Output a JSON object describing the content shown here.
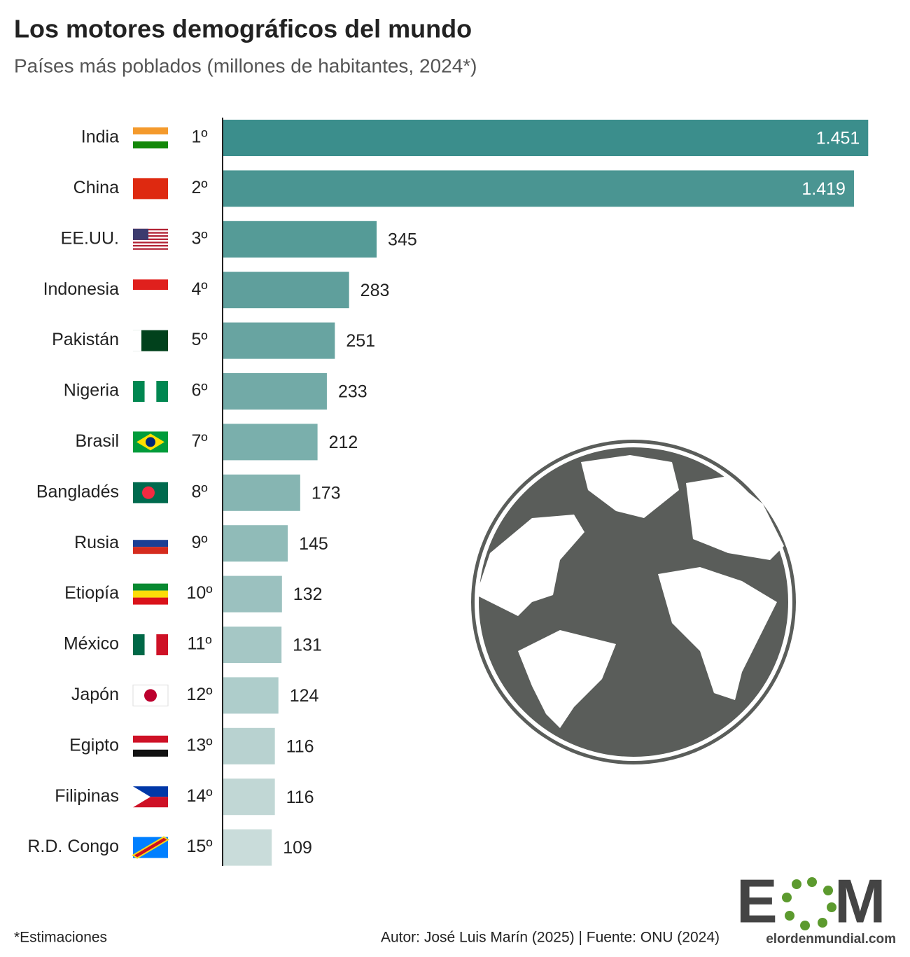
{
  "chart_data": {
    "type": "bar",
    "orientation": "horizontal",
    "title": "Los motores demográficos del mundo",
    "subtitle": "Países más poblados (millones de habitantes, 2024*)",
    "categories": [
      "India",
      "China",
      "EE.UU.",
      "Indonesia",
      "Pakistán",
      "Nigeria",
      "Brasil",
      "Bangladés",
      "Rusia",
      "Etiopía",
      "México",
      "Japón",
      "Egipto",
      "Filipinas",
      "R.D. Congo"
    ],
    "ranks": [
      "1º",
      "2º",
      "3º",
      "4º",
      "5º",
      "6º",
      "7º",
      "8º",
      "9º",
      "10º",
      "11º",
      "12º",
      "13º",
      "14º",
      "15º"
    ],
    "values": [
      1451,
      1419,
      345,
      283,
      251,
      233,
      212,
      173,
      145,
      132,
      131,
      124,
      116,
      116,
      109
    ],
    "value_labels": [
      "1.451",
      "1.419",
      "345",
      "283",
      "251",
      "233",
      "212",
      "173",
      "145",
      "132",
      "131",
      "124",
      "116",
      "116",
      "109"
    ],
    "colors": [
      "#3b8e8c",
      "#4a9592",
      "#559b97",
      "#5f9f9c",
      "#68a4a1",
      "#72aaa7",
      "#7aafac",
      "#86b5b2",
      "#90bbb8",
      "#9bc1bf",
      "#a5c7c5",
      "#aecdcb",
      "#b8d2d0",
      "#c1d7d5",
      "#c9dcda"
    ],
    "xlim": [
      0,
      1460
    ],
    "footnote": "*Estimaciones",
    "source": "Autor: José Luis Marín (2025) | Fuente: ONU (2024)",
    "logo": {
      "left": "E",
      "right": "M",
      "site": "elordenmundial.com"
    }
  }
}
